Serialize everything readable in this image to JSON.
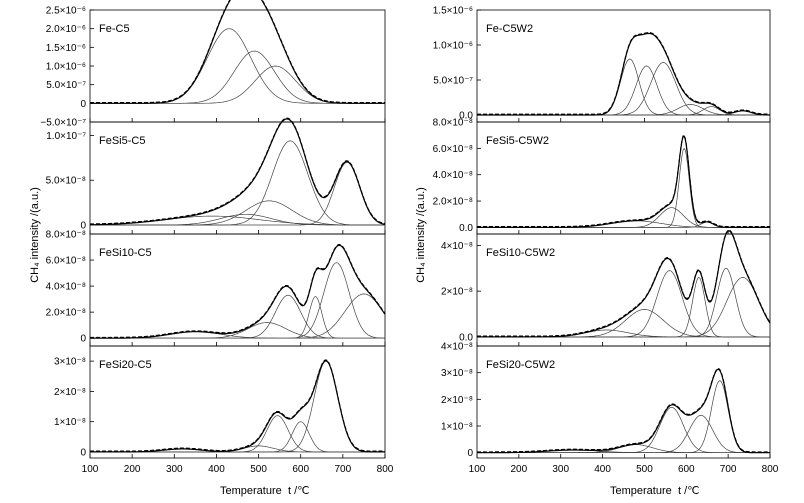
{
  "figure": {
    "ylabel": "CH₄ intensity /(a.u.)",
    "xlabel": "Temperature",
    "xunit": "t /℃",
    "xticks": [
      100,
      200,
      300,
      400,
      500,
      600,
      700,
      800
    ]
  },
  "chart_data": [
    {
      "type": "line",
      "title": "Fe-C5",
      "xlim": [
        100,
        800
      ],
      "ylim": [
        -5e-07,
        2.5e-06
      ],
      "yticks": [
        "2.5×10⁻⁶",
        "2.0×10⁻⁶",
        "1.5×10⁻⁶",
        "1.0×10⁻⁶",
        "5.0×10⁻⁷",
        "0",
        "−5.0×10⁻⁷"
      ],
      "yticks_values": [
        2.5e-06,
        2e-06,
        1.5e-06,
        1e-06,
        5e-07,
        0,
        -5e-07
      ],
      "peaks": [
        {
          "center": 430,
          "height": 2e-06,
          "width": 52
        },
        {
          "center": 490,
          "height": 1.4e-06,
          "width": 48
        },
        {
          "center": 540,
          "height": 1e-06,
          "width": 48
        }
      ]
    },
    {
      "type": "line",
      "title": "FeSi5-C5",
      "xlim": [
        100,
        800
      ],
      "ylim": [
        -1e-08,
        1.15e-07
      ],
      "yticks": [
        "1.0×10⁻⁷",
        "5.0×10⁻⁸",
        "0"
      ],
      "yticks_values": [
        1e-07,
        5e-08,
        0
      ],
      "peaks": [
        {
          "center": 390,
          "height": 1e-08,
          "width": 110
        },
        {
          "center": 470,
          "height": 1.2e-08,
          "width": 60
        },
        {
          "center": 525,
          "height": 2.7e-08,
          "width": 55
        },
        {
          "center": 575,
          "height": 9.4e-08,
          "width": 42
        },
        {
          "center": 710,
          "height": 7e-08,
          "width": 30
        }
      ]
    },
    {
      "type": "line",
      "title": "FeSi10-C5",
      "xlim": [
        100,
        800
      ],
      "ylim": [
        -6e-09,
        8e-08
      ],
      "yticks": [
        "8.0×10⁻⁸",
        "6.0×10⁻⁸",
        "4.0×10⁻⁸",
        "2.0×10⁻⁸",
        "0"
      ],
      "yticks_values": [
        8e-08,
        6e-08,
        4e-08,
        2e-08,
        0
      ],
      "peaks": [
        {
          "center": 350,
          "height": 5e-09,
          "width": 60
        },
        {
          "center": 520,
          "height": 1.2e-08,
          "width": 45
        },
        {
          "center": 570,
          "height": 3.3e-08,
          "width": 30
        },
        {
          "center": 635,
          "height": 3.2e-08,
          "width": 15
        },
        {
          "center": 685,
          "height": 5.8e-08,
          "width": 30
        },
        {
          "center": 750,
          "height": 3.4e-08,
          "width": 45
        }
      ]
    },
    {
      "type": "line",
      "title": "FeSi20-C5",
      "xlim": [
        100,
        800
      ],
      "ylim": [
        -2e-09,
        3.5e-08
      ],
      "yticks": [
        "3×10⁻⁸",
        "2×10⁻⁸",
        "1×10⁻⁸",
        "0"
      ],
      "yticks_values": [
        3e-08,
        2e-08,
        1e-08,
        0
      ],
      "peaks": [
        {
          "center": 320,
          "height": 1e-09,
          "width": 45
        },
        {
          "center": 500,
          "height": 2e-09,
          "width": 35
        },
        {
          "center": 545,
          "height": 1.2e-08,
          "width": 25
        },
        {
          "center": 600,
          "height": 1e-08,
          "width": 20
        },
        {
          "center": 660,
          "height": 3e-08,
          "width": 28
        }
      ]
    },
    {
      "type": "line",
      "title": "Fe-C5W2",
      "xlim": [
        100,
        800
      ],
      "ylim": [
        -1e-07,
        1.5e-06
      ],
      "yticks": [
        "1.5×10⁻⁶",
        "1.0×10⁻⁶",
        "5.0×10⁻⁷",
        "0.0"
      ],
      "yticks_values": [
        1.5e-06,
        1e-06,
        5e-07,
        0
      ],
      "peaks": [
        {
          "center": 465,
          "height": 8e-07,
          "width": 22
        },
        {
          "center": 505,
          "height": 7e-07,
          "width": 25
        },
        {
          "center": 545,
          "height": 7.5e-07,
          "width": 30
        },
        {
          "center": 610,
          "height": 1.5e-07,
          "width": 30
        },
        {
          "center": 660,
          "height": 1.2e-07,
          "width": 20
        },
        {
          "center": 735,
          "height": 6e-08,
          "width": 20
        }
      ]
    },
    {
      "type": "line",
      "title": "FeSi5-C5W2",
      "xlim": [
        100,
        800
      ],
      "ylim": [
        -5e-09,
        8e-08
      ],
      "yticks": [
        "8.0×10⁻⁸",
        "6.0×10⁻⁸",
        "4.0×10⁻⁸",
        "2.0×10⁻⁸",
        "0.0"
      ],
      "yticks_values": [
        8e-08,
        6e-08,
        4e-08,
        2e-08,
        0
      ],
      "peaks": [
        {
          "center": 480,
          "height": 5e-09,
          "width": 60
        },
        {
          "center": 565,
          "height": 1.5e-08,
          "width": 28
        },
        {
          "center": 595,
          "height": 6e-08,
          "width": 12
        },
        {
          "center": 650,
          "height": 4e-09,
          "width": 15
        }
      ]
    },
    {
      "type": "line",
      "title": "FeSi10-C5W2",
      "xlim": [
        100,
        800
      ],
      "ylim": [
        -4e-09,
        4.5e-08
      ],
      "yticks": [
        "4×10⁻⁸",
        "2×10⁻⁸",
        "0.0"
      ],
      "yticks_values": [
        4e-08,
        2e-08,
        0
      ],
      "peaks": [
        {
          "center": 410,
          "height": 3e-09,
          "width": 50
        },
        {
          "center": 500,
          "height": 1.2e-08,
          "width": 45
        },
        {
          "center": 560,
          "height": 2.9e-08,
          "width": 30
        },
        {
          "center": 630,
          "height": 2.6e-08,
          "width": 15
        },
        {
          "center": 695,
          "height": 3e-08,
          "width": 22
        },
        {
          "center": 735,
          "height": 2.6e-08,
          "width": 38
        }
      ]
    },
    {
      "type": "line",
      "title": "FeSi20-C5W2",
      "xlim": [
        100,
        800
      ],
      "ylim": [
        -2e-09,
        4e-08
      ],
      "yticks": [
        "4×10⁻⁸",
        "3×10⁻⁸",
        "2×10⁻⁸",
        "1×10⁻⁸",
        "0"
      ],
      "yticks_values": [
        4e-08,
        3e-08,
        2e-08,
        1e-08,
        0
      ],
      "peaks": [
        {
          "center": 330,
          "height": 1e-09,
          "width": 60
        },
        {
          "center": 480,
          "height": 3e-09,
          "width": 40
        },
        {
          "center": 565,
          "height": 1.7e-08,
          "width": 28
        },
        {
          "center": 635,
          "height": 1.4e-08,
          "width": 28
        },
        {
          "center": 680,
          "height": 2.7e-08,
          "width": 20
        }
      ]
    }
  ]
}
